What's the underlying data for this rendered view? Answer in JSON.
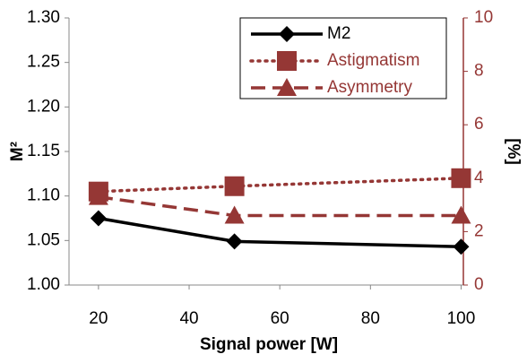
{
  "chart_data": {
    "type": "line",
    "x_label": "Signal power [W]",
    "y_label": "M²",
    "y2_label": "[%]",
    "x": [
      20,
      50,
      100
    ],
    "xlim": [
      13.5,
      100.5
    ],
    "xticks": [
      20,
      40,
      60,
      80,
      100
    ],
    "ylim": [
      1.0,
      1.3
    ],
    "yticks": [
      {
        "value": 1.0,
        "label": "1.00"
      },
      {
        "value": 1.05,
        "label": "1.05"
      },
      {
        "value": 1.1,
        "label": "1.10"
      },
      {
        "value": 1.15,
        "label": "1.15"
      },
      {
        "value": 1.2,
        "label": "1.20"
      },
      {
        "value": 1.25,
        "label": "1.25"
      },
      {
        "value": 1.3,
        "label": "1.30"
      }
    ],
    "y2lim": [
      0,
      10
    ],
    "y2ticks": [
      0,
      2,
      4,
      6,
      8,
      10
    ],
    "y2_color": "#953735",
    "legend": "top-right",
    "series": [
      {
        "name": "M2",
        "color": "#000000",
        "marker": "diamond",
        "dash": "solid",
        "values": [
          1.075,
          1.049,
          1.043
        ]
      },
      {
        "name": "Astigmatism",
        "color": "#953735",
        "marker": "square",
        "dash": "dotted",
        "axis": "y2",
        "values": [
          3.5,
          3.7,
          4.0
        ]
      },
      {
        "name": "Asymmetry",
        "color": "#953735",
        "marker": "triangle",
        "dash": "dashed",
        "axis": "y2",
        "values": [
          3.3,
          2.6,
          2.6
        ]
      }
    ]
  }
}
